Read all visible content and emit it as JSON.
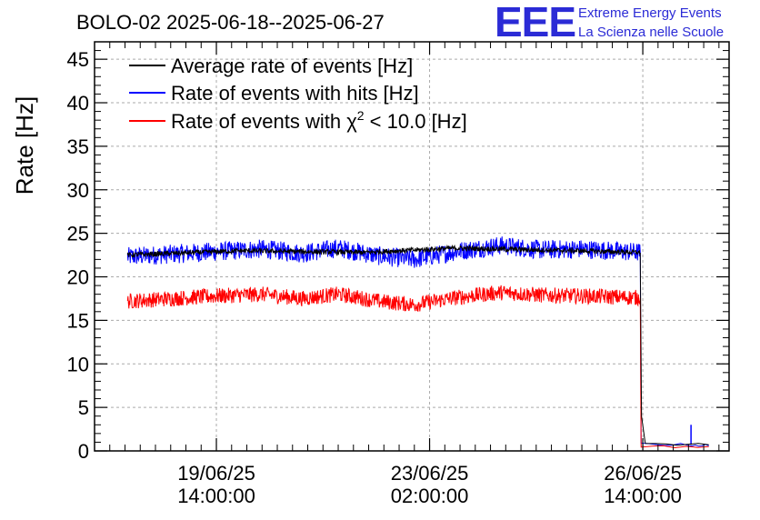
{
  "title": "BOLO-02 2025-06-18--2025-06-27",
  "logo": {
    "text": "EEE",
    "line1": "Extreme Energy Events",
    "line2": "La Scienza nelle Scuole",
    "color": "#2b2bd6"
  },
  "chart_data": {
    "type": "line",
    "title": "BOLO-02 2025-06-18--2025-06-27",
    "ylabel": "Rate [Hz]",
    "xlabel": "",
    "ylim": [
      0,
      47
    ],
    "y_ticks": [
      0,
      5,
      10,
      15,
      20,
      25,
      30,
      35,
      40,
      45
    ],
    "xlim": [
      "2025-06-17 14:00",
      "2025-06-28 00:00"
    ],
    "x_ticks": [
      {
        "date": "2025-06-19 14:00",
        "line1": "19/06/25",
        "line2": "14:00:00"
      },
      {
        "date": "2025-06-23 02:00",
        "line1": "23/06/25",
        "line2": "02:00:00"
      },
      {
        "date": "2025-06-26 14:00",
        "line1": "26/06/25",
        "line2": "14:00:00"
      }
    ],
    "grid": true,
    "legend_position": "top-left",
    "series": [
      {
        "name": "Average rate of events [Hz]",
        "color": "#000000",
        "points": [
          [
            "2025-06-18 03:00",
            22.5
          ],
          [
            "2025-06-20 00:00",
            23.0
          ],
          [
            "2025-06-22 00:00",
            22.8
          ],
          [
            "2025-06-23 12:00",
            23.3
          ],
          [
            "2025-06-25 12:00",
            23.0
          ],
          [
            "2025-06-26 13:00",
            22.8
          ],
          [
            "2025-06-26 13:10",
            16
          ],
          [
            "2025-06-26 13:30",
            4
          ],
          [
            "2025-06-26 15:00",
            0.8
          ],
          [
            "2025-06-27 16:00",
            0.7
          ]
        ]
      },
      {
        "name": "Rate of events with hits [Hz]",
        "color": "#0000ff",
        "points": [
          [
            "2025-06-18 03:00",
            22.3
          ],
          [
            "2025-06-18 20:00",
            22.6
          ],
          [
            "2025-06-19 14:00",
            22.9
          ],
          [
            "2025-06-20 08:00",
            23.2
          ],
          [
            "2025-06-21 00:00",
            22.7
          ],
          [
            "2025-06-21 14:00",
            23.3
          ],
          [
            "2025-06-22 06:00",
            22.4
          ],
          [
            "2025-06-22 20:00",
            22.0
          ],
          [
            "2025-06-23 12:00",
            22.9
          ],
          [
            "2025-06-24 06:00",
            23.6
          ],
          [
            "2025-06-24 22:00",
            23.1
          ],
          [
            "2025-06-25 14:00",
            23.2
          ],
          [
            "2025-06-26 13:00",
            22.8
          ],
          [
            "2025-06-26 13:20",
            0.8
          ],
          [
            "2025-06-27 08:00",
            0.7
          ],
          [
            "2025-06-27 16:00",
            0.6
          ]
        ],
        "spike": [
          "2025-06-27 09:00",
          3.0
        ]
      },
      {
        "name": "Rate of events with χ² < 10.0 [Hz]",
        "name_base": "Rate of events with χ",
        "name_sup": "2",
        "name_tail": " < 10.0 [Hz]",
        "color": "#ff0000",
        "points": [
          [
            "2025-06-18 03:00",
            17.2
          ],
          [
            "2025-06-18 20:00",
            17.5
          ],
          [
            "2025-06-19 14:00",
            17.8
          ],
          [
            "2025-06-20 08:00",
            18.0
          ],
          [
            "2025-06-21 00:00",
            17.5
          ],
          [
            "2025-06-21 14:00",
            18.0
          ],
          [
            "2025-06-22 06:00",
            17.2
          ],
          [
            "2025-06-22 20:00",
            16.8
          ],
          [
            "2025-06-23 12:00",
            17.6
          ],
          [
            "2025-06-24 06:00",
            18.2
          ],
          [
            "2025-06-24 22:00",
            17.9
          ],
          [
            "2025-06-25 14:00",
            17.8
          ],
          [
            "2025-06-26 13:00",
            17.6
          ],
          [
            "2025-06-26 13:20",
            0.5
          ],
          [
            "2025-06-27 16:00",
            0.5
          ]
        ]
      }
    ]
  }
}
